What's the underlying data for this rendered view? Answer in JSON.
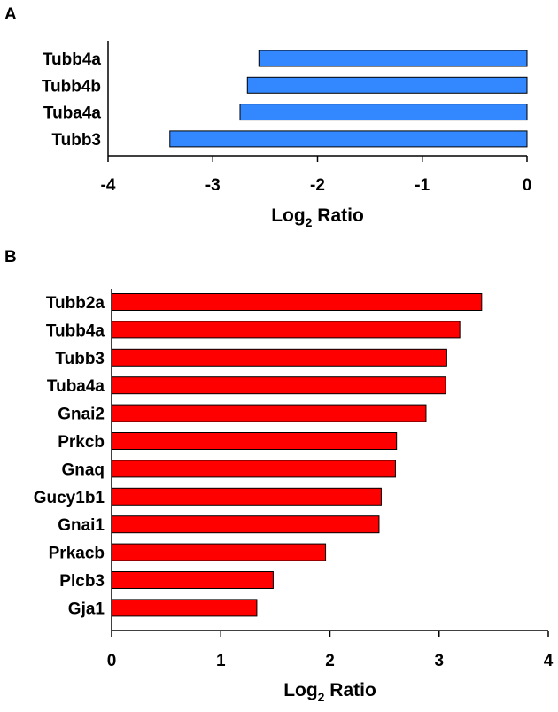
{
  "chart_data": [
    {
      "panel": "A",
      "type": "bar",
      "orientation": "horizontal",
      "categories": [
        "Tubb4a",
        "Tubb4b",
        "Tuba4a",
        "Tubb3"
      ],
      "values": [
        -2.56,
        -2.67,
        -2.74,
        -3.41
      ],
      "xlabel_main": "Log",
      "xlabel_sub": "2",
      "xlabel_rest": " Ratio",
      "xlim": [
        -4,
        0
      ],
      "xticks": [
        "-4",
        "-3",
        "-2",
        "-1",
        "0"
      ],
      "bar_color": "#3388ff",
      "grid": false,
      "legend": "none"
    },
    {
      "panel": "B",
      "type": "bar",
      "orientation": "horizontal",
      "categories": [
        "Tubb2a",
        "Tubb4a",
        "Tubb3",
        "Tuba4a",
        "Gnai2",
        "Prkcb",
        "Gnaq",
        "Gucy1b1",
        "Gnai1",
        "Prkacb",
        "Plcb3",
        "Gja1"
      ],
      "values": [
        3.39,
        3.19,
        3.07,
        3.06,
        2.88,
        2.61,
        2.6,
        2.47,
        2.45,
        1.96,
        1.48,
        1.33
      ],
      "xlabel_main": "Log",
      "xlabel_sub": "2",
      "xlabel_rest": " Ratio",
      "xlim": [
        0,
        4
      ],
      "xticks": [
        "0",
        "1",
        "2",
        "3",
        "4"
      ],
      "bar_color": "#ff0000",
      "grid": false,
      "legend": "none"
    }
  ]
}
